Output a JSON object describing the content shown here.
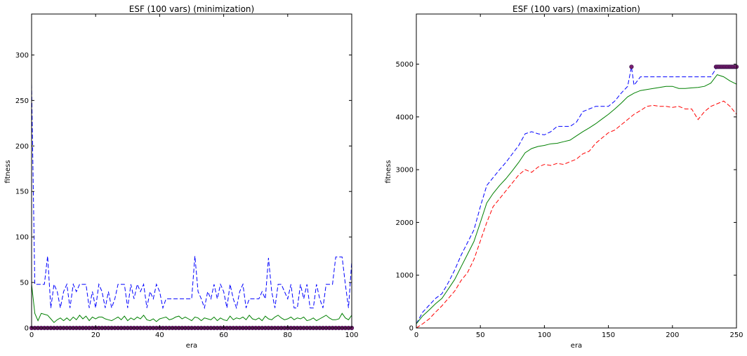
{
  "chart_data": [
    {
      "type": "line",
      "title": "ESF (100 vars) (minimization)",
      "xlabel": "era",
      "ylabel": "fitness",
      "xlim": [
        0,
        100
      ],
      "ylim": [
        0,
        345
      ],
      "xticks": [
        0,
        20,
        40,
        60,
        80,
        100
      ],
      "yticks": [
        0,
        50,
        100,
        150,
        200,
        250,
        300
      ],
      "grid": false,
      "series": [
        {
          "color": "#0000ff",
          "style": "dashed",
          "x": [
            0,
            1,
            2,
            3,
            4,
            5,
            6,
            7,
            8,
            9,
            10,
            11,
            12,
            13,
            14,
            15,
            16,
            17,
            18,
            19,
            20,
            21,
            22,
            23,
            24,
            25,
            26,
            27,
            28,
            29,
            30,
            31,
            32,
            33,
            34,
            35,
            36,
            37,
            38,
            39,
            40,
            41,
            42,
            43,
            44,
            45,
            46,
            47,
            48,
            49,
            50,
            51,
            52,
            53,
            54,
            55,
            56,
            57,
            58,
            59,
            60,
            61,
            62,
            63,
            64,
            65,
            66,
            67,
            68,
            69,
            70,
            71,
            72,
            73,
            74,
            75,
            76,
            77,
            78,
            79,
            80,
            81,
            82,
            83,
            84,
            85,
            86,
            87,
            88,
            89,
            90,
            91,
            92,
            93,
            94,
            95,
            96,
            97,
            98,
            99,
            100
          ],
          "y": [
            268,
            48,
            48,
            48,
            48,
            79,
            22,
            48,
            40,
            22,
            40,
            48,
            22,
            48,
            40,
            48,
            48,
            48,
            22,
            40,
            22,
            48,
            40,
            22,
            40,
            22,
            32,
            48,
            48,
            48,
            22,
            48,
            32,
            48,
            40,
            48,
            22,
            40,
            32,
            48,
            40,
            22,
            32,
            32,
            32,
            32,
            32,
            32,
            32,
            32,
            32,
            79,
            40,
            32,
            22,
            40,
            32,
            48,
            32,
            48,
            40,
            22,
            48,
            32,
            22,
            40,
            48,
            22,
            32,
            32,
            32,
            32,
            40,
            32,
            77,
            40,
            22,
            48,
            48,
            40,
            32,
            48,
            22,
            22,
            48,
            32,
            48,
            22,
            22,
            48,
            32,
            22,
            48,
            48,
            48,
            78,
            78,
            78,
            48,
            22,
            73
          ]
        },
        {
          "color": "#008000",
          "style": "solid",
          "x": [
            0,
            1,
            2,
            3,
            4,
            5,
            6,
            7,
            8,
            9,
            10,
            11,
            12,
            13,
            14,
            15,
            16,
            17,
            18,
            19,
            20,
            21,
            22,
            23,
            24,
            25,
            26,
            27,
            28,
            29,
            30,
            31,
            32,
            33,
            34,
            35,
            36,
            37,
            38,
            39,
            40,
            41,
            42,
            43,
            44,
            45,
            46,
            47,
            48,
            49,
            50,
            51,
            52,
            53,
            54,
            55,
            56,
            57,
            58,
            59,
            60,
            61,
            62,
            63,
            64,
            65,
            66,
            67,
            68,
            69,
            70,
            71,
            72,
            73,
            74,
            75,
            76,
            77,
            78,
            79,
            80,
            81,
            82,
            83,
            84,
            85,
            86,
            87,
            88,
            89,
            90,
            91,
            92,
            93,
            94,
            95,
            96,
            97,
            98,
            99,
            100
          ],
          "y": [
            48,
            16,
            8,
            16,
            15,
            14,
            10,
            6,
            9,
            11,
            8,
            11,
            8,
            12,
            9,
            14,
            10,
            13,
            8,
            12,
            10,
            12,
            12,
            10,
            9,
            8,
            10,
            12,
            9,
            13,
            8,
            11,
            9,
            12,
            10,
            14,
            9,
            8,
            10,
            7,
            10,
            11,
            12,
            9,
            10,
            12,
            13,
            10,
            12,
            10,
            8,
            12,
            11,
            8,
            11,
            10,
            9,
            12,
            8,
            11,
            9,
            8,
            13,
            9,
            11,
            10,
            12,
            9,
            14,
            10,
            9,
            11,
            8,
            13,
            10,
            9,
            12,
            14,
            11,
            9,
            10,
            12,
            9,
            11,
            10,
            12,
            8,
            9,
            11,
            8,
            10,
            12,
            14,
            11,
            9,
            9,
            10,
            16,
            11,
            9,
            14
          ]
        },
        {
          "color": "#ff0000",
          "style": "dashed",
          "x": [
            0,
            100
          ],
          "y": [
            0,
            0
          ]
        }
      ],
      "markers": {
        "color": "#7b1f6f",
        "x": [
          0,
          1,
          2,
          3,
          4,
          5,
          6,
          7,
          8,
          9,
          10,
          11,
          12,
          13,
          14,
          15,
          16,
          17,
          18,
          19,
          20,
          21,
          22,
          23,
          24,
          25,
          26,
          27,
          28,
          29,
          30,
          31,
          32,
          33,
          34,
          35,
          36,
          37,
          38,
          39,
          40,
          41,
          42,
          43,
          44,
          45,
          46,
          47,
          48,
          49,
          50,
          51,
          52,
          53,
          54,
          55,
          56,
          57,
          58,
          59,
          60,
          61,
          62,
          63,
          64,
          65,
          66,
          67,
          68,
          69,
          70,
          71,
          72,
          73,
          74,
          75,
          76,
          77,
          78,
          79,
          80,
          81,
          82,
          83,
          84,
          85,
          86,
          87,
          88,
          89,
          90,
          91,
          92,
          93,
          94,
          95,
          96,
          97,
          98,
          99,
          100
        ],
        "y": [
          0,
          0,
          0,
          0,
          0,
          0,
          0,
          0,
          0,
          0,
          0,
          0,
          0,
          0,
          0,
          0,
          0,
          0,
          0,
          0,
          0,
          0,
          0,
          0,
          0,
          0,
          0,
          0,
          0,
          0,
          0,
          0,
          0,
          0,
          0,
          0,
          0,
          0,
          0,
          0,
          0,
          0,
          0,
          0,
          0,
          0,
          0,
          0,
          0,
          0,
          0,
          0,
          0,
          0,
          0,
          0,
          0,
          0,
          0,
          0,
          0,
          0,
          0,
          0,
          0,
          0,
          0,
          0,
          0,
          0,
          0,
          0,
          0,
          0,
          0,
          0,
          0,
          0,
          0,
          0,
          0,
          0,
          0,
          0,
          0,
          0,
          0,
          0,
          0,
          0,
          0,
          0,
          0,
          0,
          0,
          0,
          0,
          0,
          0,
          0,
          0
        ]
      }
    },
    {
      "type": "line",
      "title": "ESF (100 vars) (maximization)",
      "xlabel": "era",
      "ylabel": "fitness",
      "xlim": [
        0,
        250
      ],
      "ylim": [
        0,
        5950
      ],
      "xticks": [
        0,
        50,
        100,
        150,
        200,
        250
      ],
      "yticks": [
        0,
        1000,
        2000,
        3000,
        4000,
        5000
      ],
      "grid": false,
      "series": [
        {
          "color": "#0000ff",
          "style": "dashed",
          "x": [
            0,
            5,
            10,
            15,
            20,
            25,
            30,
            35,
            40,
            45,
            50,
            55,
            60,
            65,
            70,
            75,
            80,
            85,
            90,
            95,
            100,
            105,
            110,
            115,
            120,
            125,
            130,
            135,
            140,
            145,
            150,
            155,
            160,
            165,
            168,
            170,
            175,
            180,
            185,
            190,
            195,
            200,
            205,
            210,
            215,
            220,
            225,
            230,
            235,
            240,
            245,
            250
          ],
          "y": [
            80,
            300,
            430,
            560,
            650,
            860,
            1100,
            1380,
            1620,
            1860,
            2300,
            2700,
            2850,
            3000,
            3140,
            3300,
            3460,
            3680,
            3720,
            3680,
            3660,
            3720,
            3820,
            3820,
            3820,
            3900,
            4100,
            4150,
            4200,
            4200,
            4200,
            4300,
            4450,
            4580,
            4950,
            4600,
            4760,
            4760,
            4760,
            4760,
            4760,
            4760,
            4760,
            4760,
            4760,
            4760,
            4760,
            4760,
            4950,
            4950,
            4950,
            4950
          ]
        },
        {
          "color": "#008000",
          "style": "solid",
          "x": [
            0,
            5,
            10,
            15,
            20,
            25,
            30,
            35,
            40,
            45,
            50,
            55,
            60,
            65,
            70,
            75,
            80,
            85,
            90,
            95,
            100,
            105,
            110,
            115,
            120,
            125,
            130,
            135,
            140,
            145,
            150,
            155,
            160,
            165,
            170,
            175,
            180,
            185,
            190,
            195,
            200,
            205,
            210,
            215,
            220,
            225,
            230,
            235,
            240,
            245,
            250
          ],
          "y": [
            80,
            230,
            340,
            460,
            560,
            740,
            920,
            1160,
            1400,
            1640,
            2000,
            2370,
            2550,
            2700,
            2830,
            2980,
            3140,
            3320,
            3400,
            3440,
            3460,
            3490,
            3500,
            3530,
            3560,
            3640,
            3720,
            3790,
            3870,
            3960,
            4050,
            4150,
            4260,
            4380,
            4450,
            4500,
            4520,
            4540,
            4560,
            4580,
            4580,
            4540,
            4540,
            4550,
            4560,
            4580,
            4640,
            4800,
            4760,
            4680,
            4620
          ]
        },
        {
          "color": "#ff0000",
          "style": "dashed",
          "x": [
            0,
            5,
            10,
            15,
            20,
            25,
            30,
            35,
            40,
            45,
            50,
            55,
            60,
            65,
            70,
            75,
            80,
            85,
            90,
            95,
            100,
            105,
            110,
            115,
            120,
            125,
            130,
            135,
            140,
            145,
            150,
            155,
            160,
            165,
            170,
            175,
            180,
            185,
            190,
            195,
            200,
            205,
            210,
            215,
            220,
            225,
            230,
            235,
            240,
            245,
            250
          ],
          "y": [
            0,
            80,
            170,
            300,
            420,
            560,
            700,
            900,
            1050,
            1300,
            1650,
            2000,
            2300,
            2450,
            2600,
            2750,
            2900,
            3000,
            2950,
            3050,
            3100,
            3080,
            3120,
            3100,
            3150,
            3200,
            3300,
            3350,
            3500,
            3600,
            3700,
            3750,
            3850,
            3950,
            4050,
            4120,
            4200,
            4220,
            4200,
            4200,
            4180,
            4200,
            4150,
            4150,
            3950,
            4100,
            4200,
            4250,
            4300,
            4200,
            4050
          ]
        }
      ],
      "markers": {
        "color": "#7b1f6f",
        "x": [
          168,
          234,
          235,
          236,
          237,
          238,
          239,
          240,
          241,
          242,
          243,
          244,
          245,
          246,
          247,
          248,
          249,
          250
        ],
        "y": [
          4950,
          4950,
          4950,
          4950,
          4950,
          4950,
          4950,
          4950,
          4950,
          4950,
          4950,
          4950,
          4950,
          4950,
          4950,
          4950,
          4950,
          4950
        ]
      }
    }
  ]
}
